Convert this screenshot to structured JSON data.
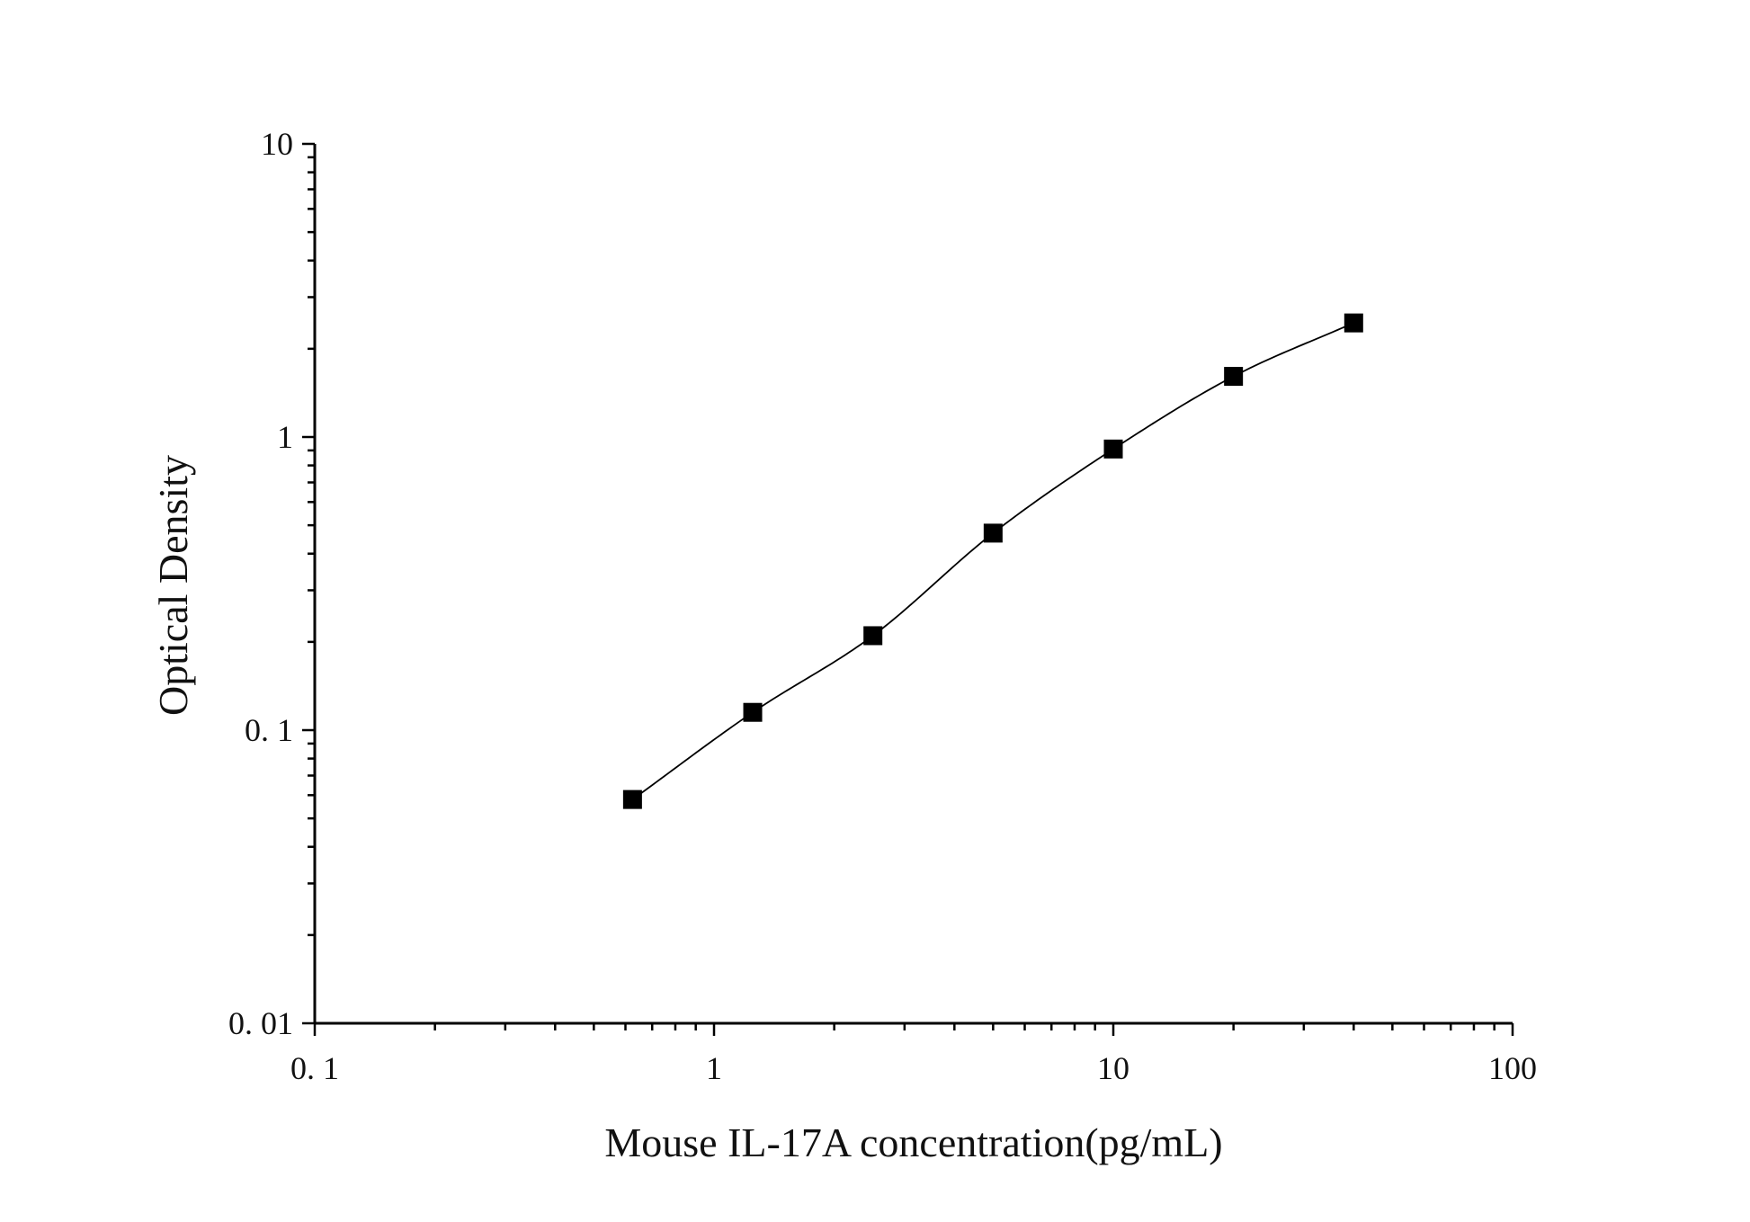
{
  "chart_data": {
    "type": "scatter",
    "xlabel": "Mouse IL-17A concentration(pg/mL)",
    "ylabel": "Optical Density",
    "x_scale": "log",
    "y_scale": "log",
    "xlim": [
      0.1,
      100
    ],
    "ylim": [
      0.01,
      10
    ],
    "x_tick_labels": [
      "0. 1",
      "1",
      "10",
      "100"
    ],
    "x_tick_values": [
      0.1,
      1,
      10,
      100
    ],
    "y_tick_labels": [
      "0. 01",
      "0. 1",
      "1",
      "10"
    ],
    "y_tick_values": [
      0.01,
      0.1,
      1,
      10
    ],
    "grid": false,
    "legend": "none",
    "series": [
      {
        "marker": "square",
        "color": "#000000",
        "x": [
          0.625,
          1.25,
          2.5,
          5,
          10,
          20,
          40
        ],
        "y": [
          0.058,
          0.115,
          0.21,
          0.47,
          0.91,
          1.61,
          2.45
        ]
      }
    ],
    "fit_curve": {
      "color": "#000000",
      "x_range": [
        0.625,
        40
      ]
    }
  }
}
